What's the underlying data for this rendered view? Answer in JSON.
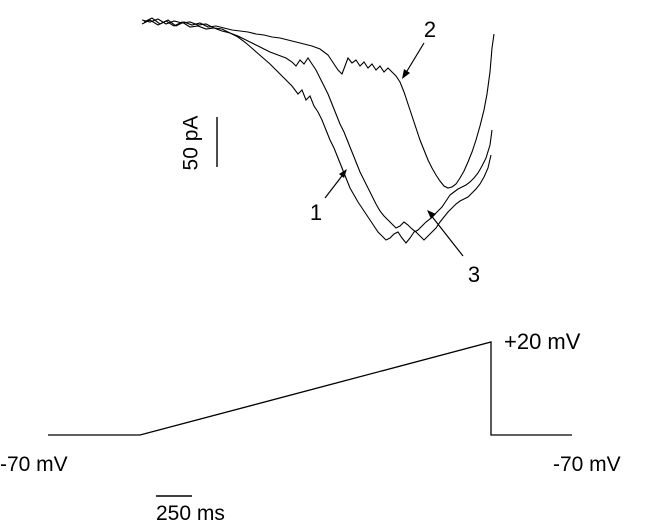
{
  "current_traces": {
    "labels": [
      "1",
      "2",
      "3"
    ],
    "scale_bar_label": "50 pA"
  },
  "voltage_protocol": {
    "holding_label_left": "-70 mV",
    "holding_label_right": "-70 mV",
    "peak_label": "+20 mV",
    "time_scale_value": "250",
    "time_scale_unit": " ms"
  },
  "colors": {
    "trace": "#000000",
    "background": "#ffffff"
  }
}
